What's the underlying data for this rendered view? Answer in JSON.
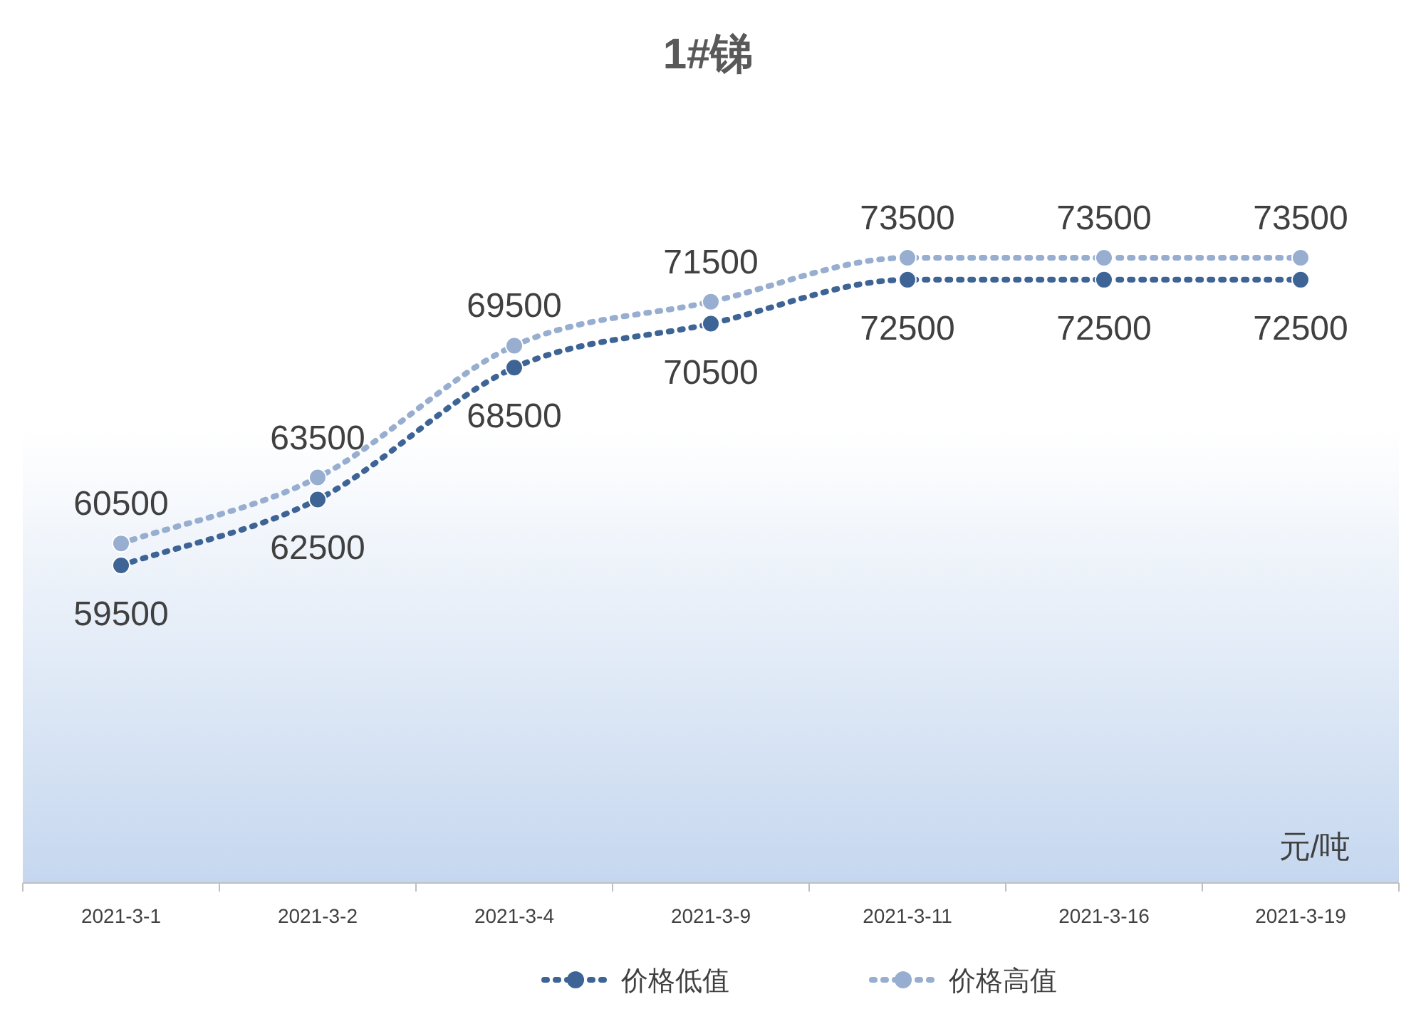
{
  "chart_data": {
    "type": "line",
    "title": "1#锑",
    "annotations": [
      "元/吨"
    ],
    "categories": [
      "2021-3-1",
      "2021-3-2",
      "2021-3-4",
      "2021-3-9",
      "2021-3-11",
      "2021-3-16",
      "2021-3-19"
    ],
    "series": [
      {
        "name": "价格低值",
        "color": "#3e6496",
        "values": [
          59500,
          62500,
          68500,
          70500,
          72500,
          72500,
          72500
        ]
      },
      {
        "name": "价格高值",
        "color": "#98aed0",
        "values": [
          60500,
          63500,
          69500,
          71500,
          73500,
          73500,
          73500
        ]
      }
    ],
    "data_labels": true,
    "marker": "circle",
    "line_style": "dotted",
    "legend": "bottom",
    "grid": false
  }
}
